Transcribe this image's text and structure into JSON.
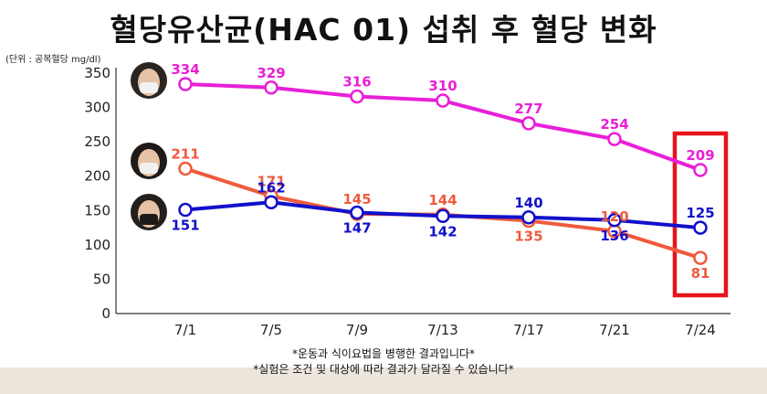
{
  "title": "혈당유산균(HAC 01) 섭취 후 혈당 변화",
  "unit_label": "(단위 : 공복혈당 mg/dl)",
  "footnotes": [
    "*운동과 식이요법을 병행한 결과입니다*",
    "*실험은 조건 및 대상에 따라 결과가 달라질 수 있습니다*"
  ],
  "chart_data": {
    "type": "line",
    "title": "혈당유산균(HAC 01) 섭취 후 혈당 변화",
    "xlabel": "",
    "ylabel": "",
    "categories": [
      "7/1",
      "7/5",
      "7/9",
      "7/13",
      "7/17",
      "7/21",
      "7/24"
    ],
    "ylim": [
      0,
      350
    ],
    "yticks": [
      0,
      50,
      100,
      150,
      200,
      250,
      300,
      350
    ],
    "grid": false,
    "legend": "none (participant face photos at left)",
    "series": [
      {
        "color": "#e81fd8",
        "values": [
          334,
          329,
          316,
          310,
          277,
          254,
          209
        ]
      },
      {
        "color": "#ef5a3c",
        "values": [
          211,
          171,
          145,
          144,
          135,
          120,
          81
        ]
      },
      {
        "color": "#1111cc",
        "values": [
          151,
          162,
          147,
          142,
          140,
          136,
          125
        ]
      }
    ],
    "highlight": {
      "category": "7/24",
      "color": "#e8141b"
    }
  },
  "icons": [
    "avatar-person-1",
    "avatar-person-2",
    "avatar-person-3"
  ]
}
